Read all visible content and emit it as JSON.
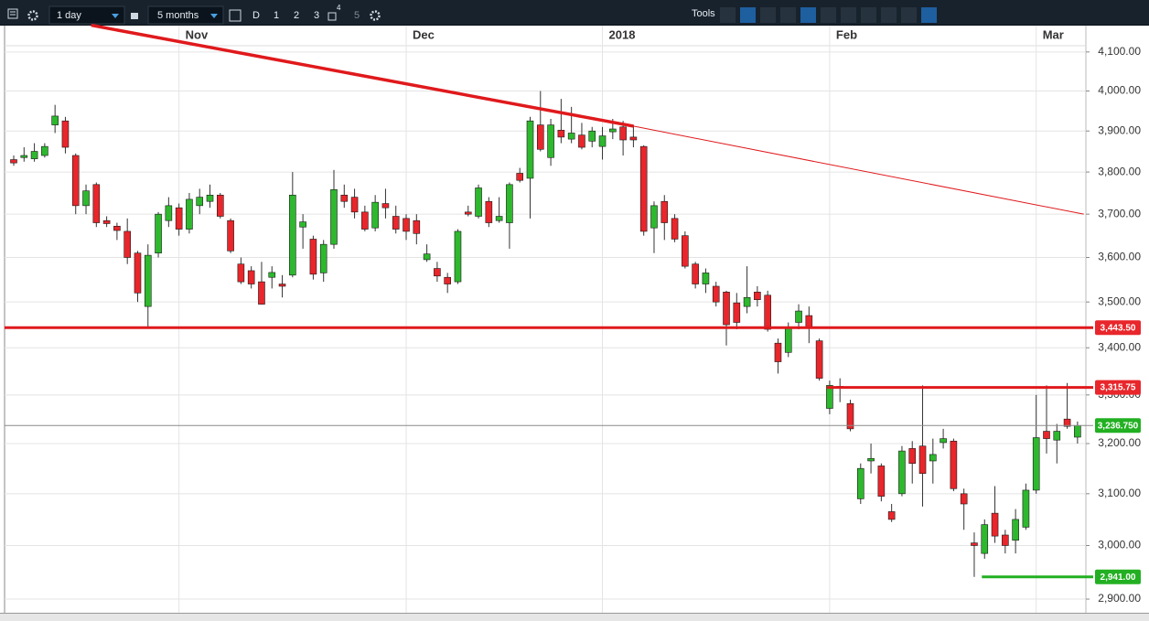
{
  "toolbar": {
    "interval": "1 day",
    "range": "5 months",
    "buttons": [
      "D",
      "1",
      "2",
      "3",
      "4",
      "5"
    ],
    "tools": "Tools"
  },
  "chart_data": {
    "type": "candlestick",
    "categories": [
      null,
      null,
      null,
      null,
      null,
      null,
      null,
      null,
      null,
      null,
      null,
      null,
      null,
      null,
      null,
      null,
      "Nov",
      null,
      null,
      null,
      null,
      null,
      null,
      null,
      null,
      null,
      null,
      null,
      null,
      null,
      null,
      null,
      null,
      null,
      null,
      null,
      null,
      null,
      "Dec",
      null,
      null,
      null,
      null,
      null,
      null,
      null,
      null,
      null,
      null,
      null,
      null,
      null,
      null,
      null,
      null,
      null,
      null,
      "2018",
      null,
      null,
      null,
      null,
      null,
      null,
      null,
      null,
      null,
      null,
      null,
      null,
      null,
      null,
      null,
      null,
      null,
      null,
      null,
      null,
      null,
      "Feb",
      null,
      null,
      null,
      null,
      null,
      null,
      null,
      null,
      null,
      null,
      null,
      null,
      null,
      null,
      null,
      null,
      null,
      null,
      null,
      "Mar",
      null,
      null,
      null,
      null
    ],
    "open": [
      3830,
      3835,
      3832,
      3840,
      3915,
      3925,
      3840,
      3720,
      3770,
      3685,
      3672,
      3660,
      3610,
      3490,
      3610,
      3685,
      3715,
      3665,
      3720,
      3730,
      3745,
      3685,
      3585,
      3570,
      3545,
      3555,
      3540,
      3560,
      3670,
      3642,
      3565,
      3630,
      3745,
      3740,
      3705,
      3668,
      3725,
      3695,
      3690,
      3685,
      3595,
      3575,
      3555,
      3545,
      3705,
      3695,
      3730,
      3685,
      3680,
      3797,
      3785,
      3915,
      3835,
      3902,
      3880,
      3890,
      3875,
      3862,
      3898,
      3910,
      3885,
      3862,
      3668,
      3730,
      3690,
      3650,
      3585,
      3540,
      3535,
      3522,
      3498,
      3490,
      3522,
      3515,
      3410,
      3390,
      3455,
      3470,
      3415,
      3272,
      3318,
      3282,
      3090,
      3165,
      3155,
      3065,
      3100,
      3190,
      3195,
      3165,
      3202,
      3205,
      3100,
      3005,
      2985,
      3062,
      3020,
      3010,
      3035,
      3107,
      3225,
      3207,
      3250,
      3213
    ],
    "high": [
      3840,
      3860,
      3870,
      3870,
      3965,
      3935,
      3845,
      3770,
      3775,
      3695,
      3680,
      3690,
      3615,
      3630,
      3705,
      3740,
      3725,
      3750,
      3760,
      3770,
      3750,
      3690,
      3600,
      3580,
      3590,
      3580,
      3560,
      3800,
      3700,
      3650,
      3640,
      3805,
      3770,
      3760,
      3720,
      3745,
      3760,
      3720,
      3700,
      3700,
      3630,
      3590,
      3565,
      3665,
      3720,
      3770,
      3740,
      3740,
      3775,
      3810,
      3935,
      4000,
      3930,
      3980,
      3960,
      3920,
      3910,
      3910,
      3930,
      3925,
      3915,
      3865,
      3730,
      3745,
      3700,
      3660,
      3590,
      3575,
      3545,
      3525,
      3520,
      3580,
      3535,
      3525,
      3420,
      3455,
      3495,
      3490,
      3420,
      3330,
      3335,
      3290,
      3160,
      3200,
      3160,
      3080,
      3195,
      3205,
      3320,
      3210,
      3230,
      3210,
      3110,
      3025,
      3050,
      3115,
      3030,
      3070,
      3120,
      3300,
      3320,
      3240,
      3325,
      3245
    ],
    "low": [
      3815,
      3825,
      3825,
      3835,
      3895,
      3845,
      3700,
      3700,
      3670,
      3670,
      3640,
      3585,
      3500,
      3445,
      3600,
      3670,
      3650,
      3655,
      3700,
      3715,
      3690,
      3610,
      3540,
      3530,
      3495,
      3530,
      3510,
      3555,
      3620,
      3550,
      3545,
      3620,
      3715,
      3690,
      3660,
      3660,
      3690,
      3655,
      3640,
      3630,
      3590,
      3545,
      3520,
      3540,
      3695,
      3690,
      3670,
      3680,
      3620,
      3775,
      3690,
      3850,
      3815,
      3870,
      3870,
      3855,
      3860,
      3830,
      3880,
      3840,
      3860,
      3650,
      3610,
      3640,
      3635,
      3575,
      3530,
      3520,
      3490,
      3405,
      3440,
      3475,
      3490,
      3435,
      3345,
      3380,
      3440,
      3410,
      3330,
      3260,
      3285,
      3225,
      3080,
      3140,
      3085,
      3045,
      3095,
      3120,
      3075,
      3120,
      3190,
      3105,
      3030,
      2941,
      2975,
      3005,
      2985,
      2985,
      3030,
      3100,
      3180,
      3160,
      3230,
      3200
    ],
    "close": [
      3822,
      3840,
      3850,
      3862,
      3937,
      3860,
      3720,
      3755,
      3680,
      3678,
      3662,
      3600,
      3520,
      3605,
      3700,
      3720,
      3665,
      3735,
      3740,
      3745,
      3695,
      3615,
      3545,
      3540,
      3495,
      3566,
      3535,
      3745,
      3682,
      3562,
      3630,
      3758,
      3730,
      3705,
      3665,
      3728,
      3715,
      3665,
      3660,
      3655,
      3608,
      3558,
      3540,
      3660,
      3700,
      3762,
      3680,
      3695,
      3770,
      3780,
      3925,
      3855,
      3915,
      3885,
      3895,
      3860,
      3900,
      3888,
      3905,
      3878,
      3878,
      3660,
      3720,
      3680,
      3642,
      3580,
      3540,
      3565,
      3500,
      3450,
      3455,
      3510,
      3505,
      3440,
      3370,
      3445,
      3480,
      3445,
      3335,
      3320,
      3315,
      3230,
      3150,
      3170,
      3095,
      3050,
      3185,
      3160,
      3140,
      3178,
      3210,
      3110,
      3080,
      3000,
      3040,
      3018,
      3000,
      3050,
      3107,
      3212,
      3210,
      3225,
      3235,
      3236.75
    ],
    "colors": {
      "up": "#2eb82e",
      "down": "#e8262b",
      "wick": "#333333",
      "outline": "#1a1a1a"
    },
    "log_scale": true,
    "ylim": [
      2875,
      4169
    ],
    "yticks": [
      {
        "value": 2900,
        "label": "2,900.00"
      },
      {
        "value": 3000,
        "label": "3,000.00"
      },
      {
        "value": 3100,
        "label": "3,100.00"
      },
      {
        "value": 3200,
        "label": "3,200.00"
      },
      {
        "value": 3300,
        "label": "3,300.00"
      },
      {
        "value": 3400,
        "label": "3,400.00"
      },
      {
        "value": 3500,
        "label": "3,500.00"
      },
      {
        "value": 3600,
        "label": "3,600.00"
      },
      {
        "value": 3700,
        "label": "3,700.00"
      },
      {
        "value": 3800,
        "label": "3,800.00"
      },
      {
        "value": 3900,
        "label": "3,900.00"
      },
      {
        "value": 4000,
        "label": "4,000.00"
      },
      {
        "value": 4100,
        "label": "4,100.00"
      }
    ],
    "grid": true,
    "trendline": {
      "x": [
        7.5,
        60,
        103.6
      ],
      "y": [
        4170,
        3912,
        3700
      ],
      "color": "#e0191c"
    },
    "levels": [
      {
        "value": 3443.5,
        "label": "3,443.50",
        "color": "#e8262b",
        "line_color": "#e0191c",
        "start": 0
      },
      {
        "value": 3315.75,
        "label": "3,315.75",
        "color": "#e8262b",
        "line_color": "#e0191c",
        "start": 79
      },
      {
        "value": 3236.75,
        "label": "3,236.750",
        "color": "#22b022",
        "line_color": "#8a8a8a",
        "start": 0
      },
      {
        "value": 2941,
        "label": "2,941.00",
        "color": "#22b022",
        "line_color": "#22b022",
        "start": 94
      }
    ]
  }
}
